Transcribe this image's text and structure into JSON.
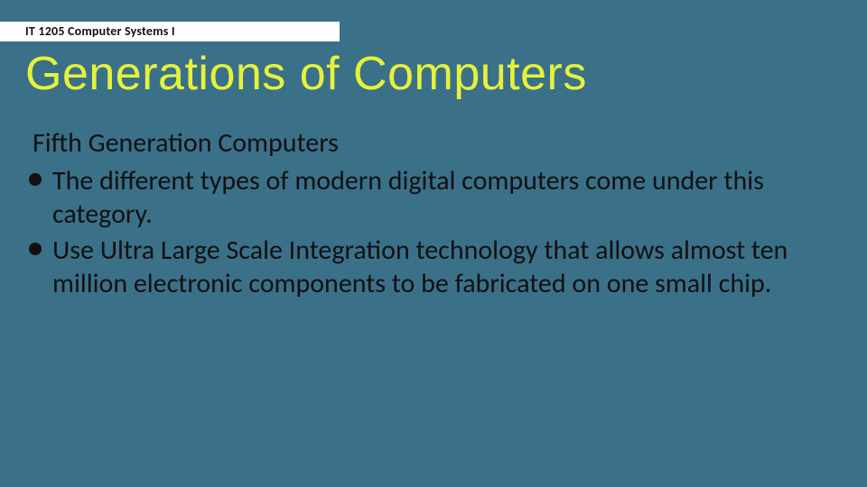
{
  "header": {
    "course_label": "IT 1205 Computer Systems I"
  },
  "title": "Generations of Computers",
  "subtitle": "Fifth Generation Computers",
  "bullets": [
    {
      "text": "The different types of modern digital computers come under this category."
    },
    {
      "text": "Use Ultra Large Scale Integration technology that allows almost ten million electronic components to be fabricated on one small chip."
    }
  ],
  "colors": {
    "background": "#3b7089",
    "title_color": "#e6f23a",
    "text_color": "#111111",
    "header_band": "#ffffff"
  },
  "typography": {
    "title_fontsize": 52,
    "body_fontsize": 30,
    "label_fontsize": 14
  }
}
